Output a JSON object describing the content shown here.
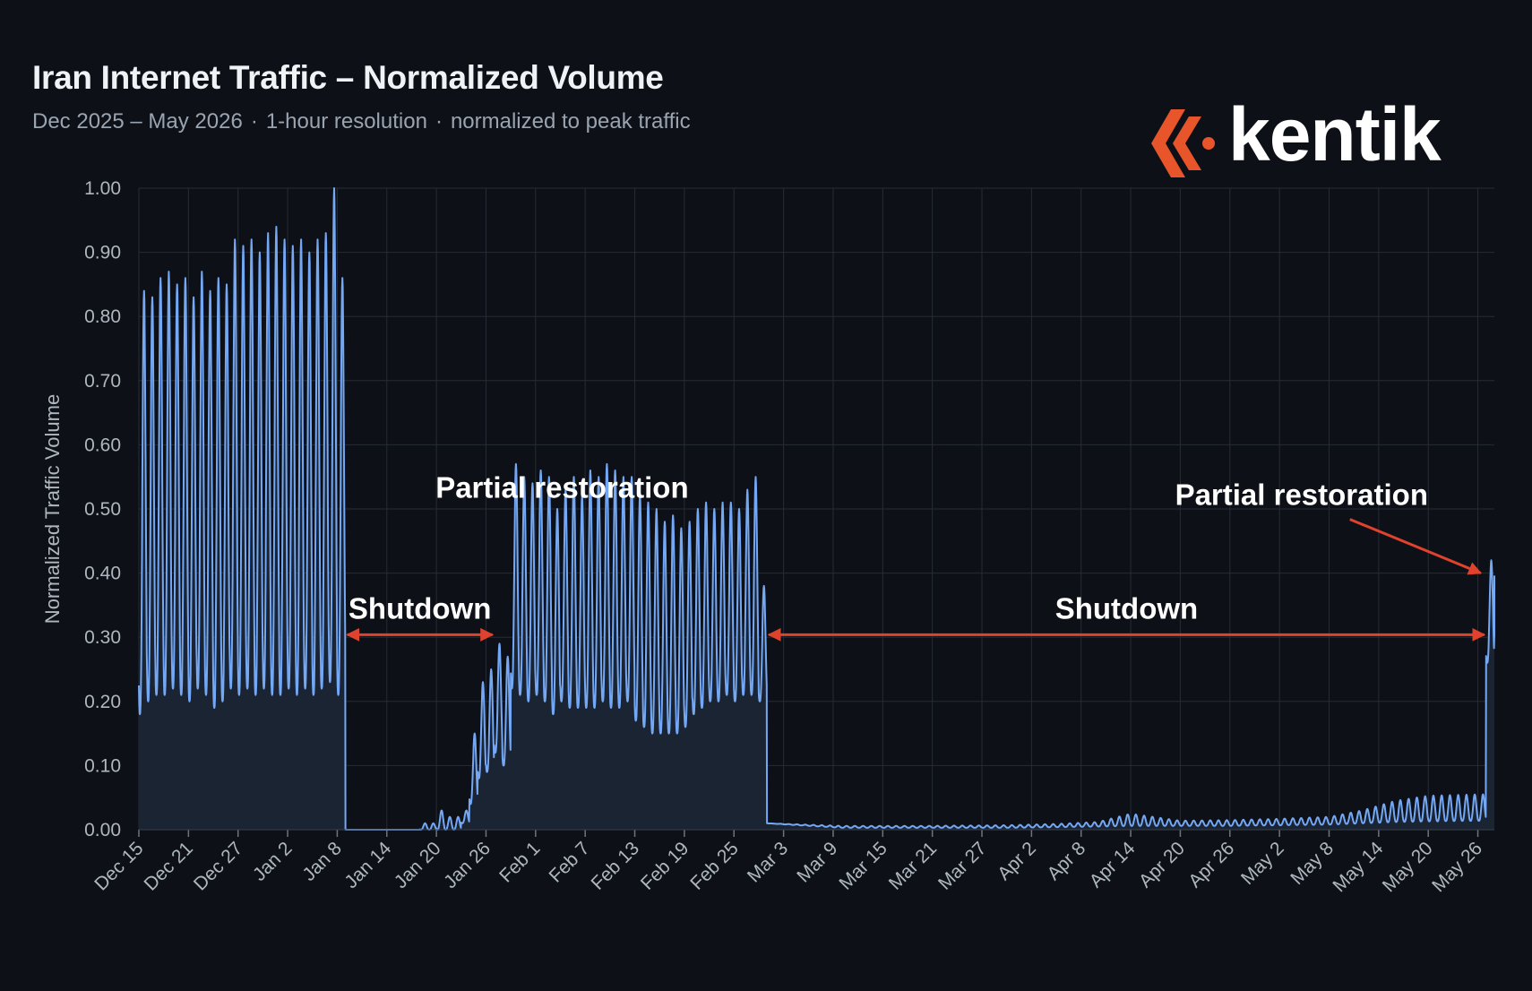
{
  "header": {
    "title": "Iran Internet Traffic – Normalized Volume",
    "subtitle_parts": [
      "Dec 2025 – May 2026",
      "1-hour resolution",
      "normalized to peak traffic"
    ],
    "subtitle_separator": "·"
  },
  "logo": {
    "wordmark": "kentik",
    "icon": "kentik-chevron-icon",
    "accent": "#e8552a"
  },
  "colors": {
    "background": "#0d1117",
    "series": "#74a8f5",
    "fill": "#1a2433",
    "grid": "#262c35",
    "annotation_arrow": "#e0422d"
  },
  "chart_data": {
    "type": "area",
    "ylabel": "Normalized Traffic Volume",
    "xlabel": "",
    "ylim": [
      0,
      1.0
    ],
    "yticks": [
      "0.00",
      "0.10",
      "0.20",
      "0.30",
      "0.40",
      "0.50",
      "0.60",
      "0.70",
      "0.80",
      "0.90",
      "1.00"
    ],
    "x_range": [
      "2025-12-15",
      "2026-05-28"
    ],
    "xticks": [
      {
        "date": "2025-12-15",
        "label": "Dec 15"
      },
      {
        "date": "2025-12-21",
        "label": "Dec 21"
      },
      {
        "date": "2025-12-27",
        "label": "Dec 27"
      },
      {
        "date": "2026-01-02",
        "label": "Jan 2"
      },
      {
        "date": "2026-01-08",
        "label": "Jan 8"
      },
      {
        "date": "2026-01-14",
        "label": "Jan 14"
      },
      {
        "date": "2026-01-20",
        "label": "Jan 20"
      },
      {
        "date": "2026-01-26",
        "label": "Jan 26"
      },
      {
        "date": "2026-02-01",
        "label": "Feb 1"
      },
      {
        "date": "2026-02-07",
        "label": "Feb 7"
      },
      {
        "date": "2026-02-13",
        "label": "Feb 13"
      },
      {
        "date": "2026-02-19",
        "label": "Feb 19"
      },
      {
        "date": "2026-02-25",
        "label": "Feb 25"
      },
      {
        "date": "2026-03-03",
        "label": "Mar 3"
      },
      {
        "date": "2026-03-09",
        "label": "Mar 9"
      },
      {
        "date": "2026-03-15",
        "label": "Mar 15"
      },
      {
        "date": "2026-03-21",
        "label": "Mar 21"
      },
      {
        "date": "2026-03-27",
        "label": "Mar 27"
      },
      {
        "date": "2026-04-02",
        "label": "Apr 2"
      },
      {
        "date": "2026-04-08",
        "label": "Apr 8"
      },
      {
        "date": "2026-04-14",
        "label": "Apr 14"
      },
      {
        "date": "2026-04-20",
        "label": "Apr 20"
      },
      {
        "date": "2026-04-26",
        "label": "Apr 26"
      },
      {
        "date": "2026-05-02",
        "label": "May 2"
      },
      {
        "date": "2026-05-08",
        "label": "May 8"
      },
      {
        "date": "2026-05-14",
        "label": "May 14"
      },
      {
        "date": "2026-05-20",
        "label": "May 20"
      },
      {
        "date": "2026-05-26",
        "label": "May 26"
      }
    ],
    "grid": true,
    "legend": "none",
    "series": [
      {
        "daily": [
          {
            "date": "2025-12-15",
            "min": 0.18,
            "max": 0.84
          },
          {
            "date": "2025-12-16",
            "min": 0.2,
            "max": 0.83
          },
          {
            "date": "2025-12-17",
            "min": 0.21,
            "max": 0.86
          },
          {
            "date": "2025-12-18",
            "min": 0.21,
            "max": 0.87
          },
          {
            "date": "2025-12-19",
            "min": 0.22,
            "max": 0.85
          },
          {
            "date": "2025-12-20",
            "min": 0.21,
            "max": 0.86
          },
          {
            "date": "2025-12-21",
            "min": 0.2,
            "max": 0.83
          },
          {
            "date": "2025-12-22",
            "min": 0.22,
            "max": 0.87
          },
          {
            "date": "2025-12-23",
            "min": 0.21,
            "max": 0.84
          },
          {
            "date": "2025-12-24",
            "min": 0.19,
            "max": 0.86
          },
          {
            "date": "2025-12-25",
            "min": 0.2,
            "max": 0.85
          },
          {
            "date": "2025-12-26",
            "min": 0.22,
            "max": 0.92
          },
          {
            "date": "2025-12-27",
            "min": 0.21,
            "max": 0.91
          },
          {
            "date": "2025-12-28",
            "min": 0.22,
            "max": 0.92
          },
          {
            "date": "2025-12-29",
            "min": 0.21,
            "max": 0.9
          },
          {
            "date": "2025-12-30",
            "min": 0.22,
            "max": 0.93
          },
          {
            "date": "2025-12-31",
            "min": 0.21,
            "max": 0.94
          },
          {
            "date": "2026-01-01",
            "min": 0.21,
            "max": 0.92
          },
          {
            "date": "2026-01-02",
            "min": 0.22,
            "max": 0.91
          },
          {
            "date": "2026-01-03",
            "min": 0.21,
            "max": 0.92
          },
          {
            "date": "2026-01-04",
            "min": 0.22,
            "max": 0.9
          },
          {
            "date": "2026-01-05",
            "min": 0.21,
            "max": 0.92
          },
          {
            "date": "2026-01-06",
            "min": 0.22,
            "max": 0.93
          },
          {
            "date": "2026-01-07",
            "min": 0.23,
            "max": 1.0
          },
          {
            "date": "2026-01-08",
            "min": 0.21,
            "max": 0.86
          },
          {
            "date": "2026-01-09",
            "min": 0.0,
            "max": 0.0
          },
          {
            "date": "2026-01-10",
            "min": 0.0,
            "max": 0.0
          },
          {
            "date": "2026-01-11",
            "min": 0.0,
            "max": 0.0
          },
          {
            "date": "2026-01-12",
            "min": 0.0,
            "max": 0.0
          },
          {
            "date": "2026-01-13",
            "min": 0.0,
            "max": 0.0
          },
          {
            "date": "2026-01-14",
            "min": 0.0,
            "max": 0.0
          },
          {
            "date": "2026-01-15",
            "min": 0.0,
            "max": 0.0
          },
          {
            "date": "2026-01-16",
            "min": 0.0,
            "max": 0.0
          },
          {
            "date": "2026-01-17",
            "min": 0.0,
            "max": 0.0
          },
          {
            "date": "2026-01-18",
            "min": 0.0,
            "max": 0.01
          },
          {
            "date": "2026-01-19",
            "min": 0.0,
            "max": 0.01
          },
          {
            "date": "2026-01-20",
            "min": 0.0,
            "max": 0.03
          },
          {
            "date": "2026-01-21",
            "min": 0.0,
            "max": 0.02
          },
          {
            "date": "2026-01-22",
            "min": 0.0,
            "max": 0.02
          },
          {
            "date": "2026-01-23",
            "min": 0.01,
            "max": 0.03
          },
          {
            "date": "2026-01-24",
            "min": 0.04,
            "max": 0.15
          },
          {
            "date": "2026-01-25",
            "min": 0.08,
            "max": 0.23
          },
          {
            "date": "2026-01-26",
            "min": 0.09,
            "max": 0.25
          },
          {
            "date": "2026-01-27",
            "min": 0.12,
            "max": 0.29
          },
          {
            "date": "2026-01-28",
            "min": 0.1,
            "max": 0.27
          },
          {
            "date": "2026-01-29",
            "min": 0.22,
            "max": 0.57
          },
          {
            "date": "2026-01-30",
            "min": 0.21,
            "max": 0.55
          },
          {
            "date": "2026-01-31",
            "min": 0.2,
            "max": 0.54
          },
          {
            "date": "2026-02-01",
            "min": 0.21,
            "max": 0.56
          },
          {
            "date": "2026-02-02",
            "min": 0.2,
            "max": 0.55
          },
          {
            "date": "2026-02-03",
            "min": 0.18,
            "max": 0.5
          },
          {
            "date": "2026-02-04",
            "min": 0.2,
            "max": 0.53
          },
          {
            "date": "2026-02-05",
            "min": 0.19,
            "max": 0.55
          },
          {
            "date": "2026-02-06",
            "min": 0.19,
            "max": 0.52
          },
          {
            "date": "2026-02-07",
            "min": 0.19,
            "max": 0.56
          },
          {
            "date": "2026-02-08",
            "min": 0.19,
            "max": 0.55
          },
          {
            "date": "2026-02-09",
            "min": 0.2,
            "max": 0.57
          },
          {
            "date": "2026-02-10",
            "min": 0.19,
            "max": 0.56
          },
          {
            "date": "2026-02-11",
            "min": 0.19,
            "max": 0.55
          },
          {
            "date": "2026-02-12",
            "min": 0.2,
            "max": 0.55
          },
          {
            "date": "2026-02-13",
            "min": 0.17,
            "max": 0.52
          },
          {
            "date": "2026-02-14",
            "min": 0.16,
            "max": 0.51
          },
          {
            "date": "2026-02-15",
            "min": 0.15,
            "max": 0.5
          },
          {
            "date": "2026-02-16",
            "min": 0.15,
            "max": 0.48
          },
          {
            "date": "2026-02-17",
            "min": 0.15,
            "max": 0.49
          },
          {
            "date": "2026-02-18",
            "min": 0.15,
            "max": 0.47
          },
          {
            "date": "2026-02-19",
            "min": 0.16,
            "max": 0.48
          },
          {
            "date": "2026-02-20",
            "min": 0.18,
            "max": 0.5
          },
          {
            "date": "2026-02-21",
            "min": 0.19,
            "max": 0.51
          },
          {
            "date": "2026-02-22",
            "min": 0.2,
            "max": 0.5
          },
          {
            "date": "2026-02-23",
            "min": 0.2,
            "max": 0.51
          },
          {
            "date": "2026-02-24",
            "min": 0.21,
            "max": 0.51
          },
          {
            "date": "2026-02-25",
            "min": 0.2,
            "max": 0.5
          },
          {
            "date": "2026-02-26",
            "min": 0.21,
            "max": 0.53
          },
          {
            "date": "2026-02-27",
            "min": 0.21,
            "max": 0.55
          },
          {
            "date": "2026-02-28",
            "min": 0.2,
            "max": 0.38
          },
          {
            "date": "2026-03-01",
            "min": 0.01,
            "max": 0.01
          },
          {
            "date": "2026-03-10",
            "min": 0.003,
            "max": 0.006
          },
          {
            "date": "2026-03-20",
            "min": 0.003,
            "max": 0.006
          },
          {
            "date": "2026-03-30",
            "min": 0.003,
            "max": 0.007
          },
          {
            "date": "2026-04-05",
            "min": 0.004,
            "max": 0.009
          },
          {
            "date": "2026-04-10",
            "min": 0.005,
            "max": 0.012
          },
          {
            "date": "2026-04-14",
            "min": 0.006,
            "max": 0.025
          },
          {
            "date": "2026-04-20",
            "min": 0.006,
            "max": 0.014
          },
          {
            "date": "2026-04-26",
            "min": 0.006,
            "max": 0.015
          },
          {
            "date": "2026-05-02",
            "min": 0.007,
            "max": 0.017
          },
          {
            "date": "2026-05-08",
            "min": 0.008,
            "max": 0.02
          },
          {
            "date": "2026-05-12",
            "min": 0.01,
            "max": 0.03
          },
          {
            "date": "2026-05-16",
            "min": 0.012,
            "max": 0.045
          },
          {
            "date": "2026-05-20",
            "min": 0.013,
            "max": 0.053
          },
          {
            "date": "2026-05-26",
            "min": 0.014,
            "max": 0.055
          },
          {
            "date": "2026-05-27",
            "min": 0.26,
            "max": 0.42
          },
          {
            "date": "2026-05-28",
            "min": 0.3,
            "max": 0.42
          }
        ]
      }
    ],
    "annotations": [
      {
        "text": "Shutdown",
        "type": "span",
        "from": "2026-01-09",
        "to": "2026-01-27",
        "y": 0.29
      },
      {
        "text": "Partial restoration",
        "type": "label",
        "date": "2026-02-08",
        "y": 0.59
      },
      {
        "text": "Shutdown",
        "type": "span",
        "from": "2026-03-01",
        "to": "2026-05-27",
        "y": 0.29
      },
      {
        "text": "Partial restoration",
        "type": "pointer",
        "date": "2026-05-27",
        "y": 0.4
      }
    ]
  }
}
